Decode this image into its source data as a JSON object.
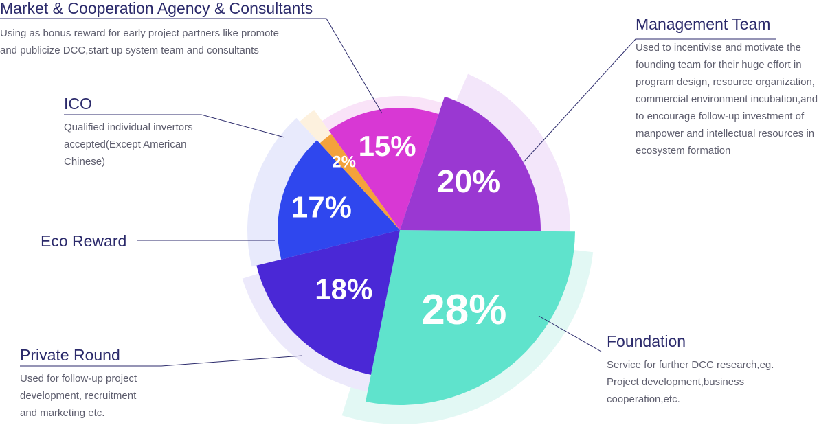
{
  "chart_data": {
    "type": "pie",
    "slices": [
      {
        "id": "foundation",
        "name": "Foundation",
        "value": 28,
        "label": "28%",
        "color": "#5fe3cc",
        "halo_color": "#e2f8f4",
        "description": [
          "Service for further DCC research,eg.",
          "Project development,business",
          "cooperation,etc."
        ]
      },
      {
        "id": "private-round",
        "name": "Private Round",
        "value": 18,
        "label": "18%",
        "color": "#4a28d6",
        "halo_color": "#ece9fb",
        "description": [
          "Used for follow-up project",
          "development, recruitment",
          "and marketing etc."
        ]
      },
      {
        "id": "eco-reward",
        "name": "Eco Reward",
        "value": 17,
        "label": "17%",
        "color": "#2f47ee",
        "halo_color": "#e8eafc",
        "description": []
      },
      {
        "id": "ico",
        "name": "ICO",
        "value": 2,
        "label": "2%",
        "color": "#f4a23c",
        "halo_color": "#fdf1de",
        "description": [
          "Qualified individual invertors",
          "accepted(Except American",
          "Chinese)"
        ]
      },
      {
        "id": "market-agency",
        "name": "Market & Cooperation Agency & Consultants",
        "value": 15,
        "label": "15%",
        "color": "#d838d4",
        "halo_color": "#f9e3f8",
        "description": [
          "Using as bonus reward for early project partners like promote",
          "and publicize DCC,start up system team and consultants"
        ]
      },
      {
        "id": "management-team",
        "name": "Management Team",
        "value": 20,
        "label": "20%",
        "color": "#9a38d2",
        "halo_color": "#f3e6fa",
        "description": [
          "Used to incentivise and motivate the",
          "founding team for their huge effort in",
          "program design, resource organization,",
          "commercial environment incubation,and",
          "to encourage follow-up investment of",
          "manpower and intellectual resources in",
          "ecosystem formation"
        ]
      }
    ]
  }
}
